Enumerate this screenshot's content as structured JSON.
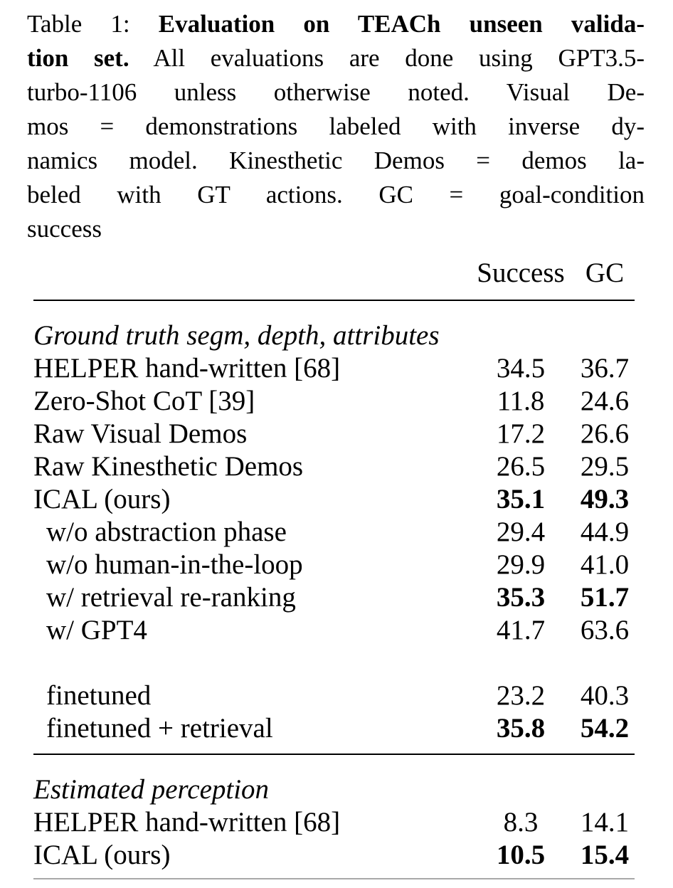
{
  "caption": {
    "lines": [
      {
        "justify": true,
        "segments": [
          {
            "t": "Table 1: ",
            "b": false
          },
          {
            "t": "Evaluation on TEACh unseen valida-",
            "b": true
          }
        ]
      },
      {
        "justify": true,
        "segments": [
          {
            "t": "tion set.",
            "b": true
          },
          {
            "t": " All evaluations are done using GPT3.5-",
            "b": false
          }
        ]
      },
      {
        "justify": true,
        "segments": [
          {
            "t": "turbo-1106 unless otherwise noted. Visual De-",
            "b": false
          }
        ]
      },
      {
        "justify": true,
        "segments": [
          {
            "t": "mos = demonstrations labeled with inverse dy-",
            "b": false
          }
        ]
      },
      {
        "justify": true,
        "segments": [
          {
            "t": "namics model. Kinesthetic Demos = demos la-",
            "b": false
          }
        ]
      },
      {
        "justify": true,
        "segments": [
          {
            "t": "beled with GT actions. GC = goal-condition",
            "b": false
          }
        ]
      },
      {
        "justify": false,
        "segments": [
          {
            "t": "success",
            "b": false
          }
        ]
      }
    ]
  },
  "table": {
    "columns": [
      "Success",
      "GC"
    ],
    "sections": [
      {
        "header": "Ground truth segm, depth, attributes",
        "rows": [
          {
            "label": "HELPER hand-written [68]",
            "success": "34.5",
            "gc": "36.7",
            "indent": false,
            "bold_values": false
          },
          {
            "label": "Zero-Shot CoT [39]",
            "success": "11.8",
            "gc": "24.6",
            "indent": false,
            "bold_values": false
          },
          {
            "label": "Raw Visual Demos",
            "success": "17.2",
            "gc": "26.6",
            "indent": false,
            "bold_values": false
          },
          {
            "label": "Raw Kinesthetic Demos",
            "success": "26.5",
            "gc": "29.5",
            "indent": false,
            "bold_values": false
          },
          {
            "label": "ICAL (ours)",
            "success": "35.1",
            "gc": "49.3",
            "indent": false,
            "bold_values": true
          },
          {
            "label": "w/o abstraction phase",
            "success": "29.4",
            "gc": "44.9",
            "indent": true,
            "bold_values": false
          },
          {
            "label": "w/o human-in-the-loop",
            "success": "29.9",
            "gc": "41.0",
            "indent": true,
            "bold_values": false
          },
          {
            "label": "w/ retrieval re-ranking",
            "success": "35.3",
            "gc": "51.7",
            "indent": true,
            "bold_values": true
          },
          {
            "label": "w/ GPT4",
            "success": "41.7",
            "gc": "63.6",
            "indent": true,
            "bold_values": false
          },
          {
            "spacer": true
          },
          {
            "label": "finetuned",
            "success": "23.2",
            "gc": "40.3",
            "indent": true,
            "bold_values": false
          },
          {
            "label": "finetuned + retrieval",
            "success": "35.8",
            "gc": "54.2",
            "indent": true,
            "bold_values": true
          }
        ]
      },
      {
        "header": "Estimated perception",
        "rows": [
          {
            "label": "HELPER hand-written [68]",
            "success": "8.3",
            "gc": "14.1",
            "indent": false,
            "bold_values": false
          },
          {
            "label": "ICAL (ours)",
            "success": "10.5",
            "gc": "15.4",
            "indent": false,
            "bold_values": true
          }
        ]
      }
    ]
  },
  "colors": {
    "text": "#000000",
    "background": "#ffffff",
    "rule": "#000000",
    "partial_bottom_rule": "#a8a8a8"
  }
}
